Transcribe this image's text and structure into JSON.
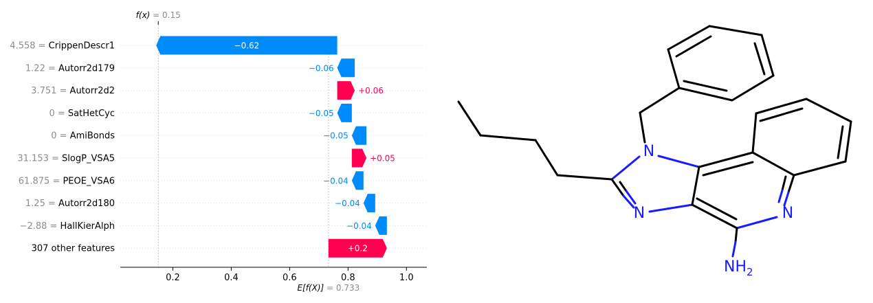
{
  "chart_data": {
    "type": "waterfall",
    "base_value": 0.733,
    "final_value": 0.15,
    "fx_label_prefix": "f(x)",
    "fx_value_text": " = 0.15",
    "ex_label_prefix": "E[f(X)]",
    "ex_value_text": " = 0.733",
    "xlim": [
      0.02,
      1.07
    ],
    "xticks": [
      0.2,
      0.4,
      0.6,
      0.8,
      1.0
    ],
    "xtick_labels": [
      "0.2",
      "0.4",
      "0.6",
      "0.8",
      "1.0"
    ],
    "features": [
      {
        "value_text": "4.558",
        "name": "CrippenDescr1",
        "contribution": -0.62,
        "label": "−0.62"
      },
      {
        "value_text": "1.22",
        "name": "Autorr2d179",
        "contribution": -0.06,
        "label": "−0.06"
      },
      {
        "value_text": "3.751",
        "name": "Autorr2d2",
        "contribution": 0.06,
        "label": "+0.06"
      },
      {
        "value_text": "0",
        "name": "SatHetCyc",
        "contribution": -0.05,
        "label": "−0.05"
      },
      {
        "value_text": "0",
        "name": "AmiBonds",
        "contribution": -0.05,
        "label": "−0.05"
      },
      {
        "value_text": "31.153",
        "name": "SlogP_VSA5",
        "contribution": 0.05,
        "label": "+0.05"
      },
      {
        "value_text": "61.875",
        "name": "PEOE_VSA6",
        "contribution": -0.04,
        "label": "−0.04"
      },
      {
        "value_text": "1.25",
        "name": "Autorr2d180",
        "contribution": -0.04,
        "label": "−0.04"
      },
      {
        "value_text": "−2.88",
        "name": "HallKierAlph",
        "contribution": -0.04,
        "label": "−0.04"
      },
      {
        "value_text": "",
        "name": "307 other features",
        "contribution": 0.2,
        "label": "+0.2"
      }
    ],
    "colors": {
      "negative": "#008bfb",
      "positive": "#ff0051",
      "muted": "#8c8c8c"
    }
  },
  "molecule": {
    "atom_labels": {
      "n1": "N",
      "n3": "N",
      "n5": "N",
      "amine_main": "NH",
      "amine_sub": "2"
    }
  }
}
